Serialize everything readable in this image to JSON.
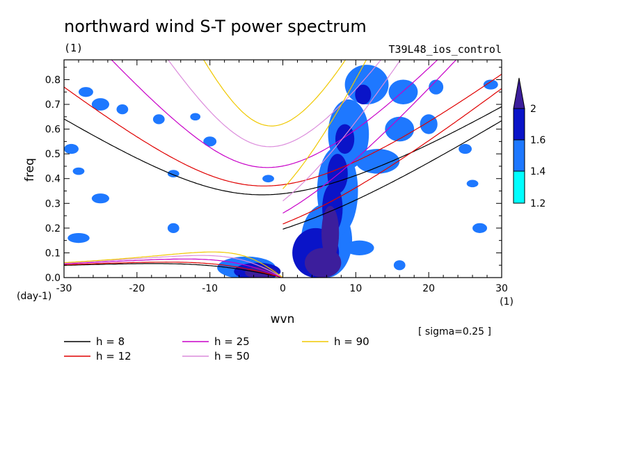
{
  "chart_data": {
    "type": "contour",
    "title": "northward wind S-T power spectrum",
    "unit_label": "(1)",
    "experiment": "T39L48_ios_control",
    "xlabel": "wvn",
    "ylabel": "freq",
    "x_unit": "(1)",
    "y_unit": "(day-1)",
    "xlim": [
      -30,
      30
    ],
    "ylim": [
      0,
      0.88
    ],
    "x_ticks": [
      -30,
      -20,
      -10,
      0,
      10,
      20,
      30
    ],
    "x_tick_labels": [
      "-30",
      "-20",
      "-10",
      "0",
      "10",
      "20",
      "30"
    ],
    "y_ticks": [
      0,
      0.1,
      0.2,
      0.3,
      0.4,
      0.5,
      0.6,
      0.7,
      0.8
    ],
    "y_tick_labels": [
      "0.0",
      "0.1",
      "0.2",
      "0.3",
      "0.4",
      "0.5",
      "0.6",
      "0.7",
      "0.8"
    ],
    "sigma_note": "[ sigma=0.25 ]",
    "colorbar": {
      "levels": [
        1.2,
        1.4,
        1.6,
        2
      ],
      "labels": [
        "1.2",
        "1.4",
        "1.6",
        "2"
      ],
      "colors": [
        "#00ffff",
        "#1e78ff",
        "#0a14c8",
        "#3c1e9c"
      ]
    },
    "dispersion_curves": [
      {
        "label": "h =  8",
        "h": 8,
        "color": "#000000"
      },
      {
        "label": "h = 12",
        "h": 12,
        "color": "#e00000"
      },
      {
        "label": "h = 25",
        "h": 25,
        "color": "#c800c8"
      },
      {
        "label": "h = 50",
        "h": 50,
        "color": "#dc8cdc"
      },
      {
        "label": "h = 90",
        "h": 90,
        "color": "#f0c800"
      }
    ],
    "power_regions": [
      {
        "x": 5.5,
        "y": 0.06,
        "rx": 2.5,
        "ry": 0.06,
        "level": 3
      },
      {
        "x": 6.5,
        "y": 0.18,
        "rx": 1.2,
        "ry": 0.11,
        "level": 3
      },
      {
        "x": 4.5,
        "y": 0.1,
        "rx": 3.2,
        "ry": 0.1,
        "level": 2
      },
      {
        "x": 6.8,
        "y": 0.28,
        "rx": 1.4,
        "ry": 0.1,
        "level": 2
      },
      {
        "x": 7.5,
        "y": 0.42,
        "rx": 1.4,
        "ry": 0.08,
        "level": 2
      },
      {
        "x": 8.5,
        "y": 0.56,
        "rx": 1.3,
        "ry": 0.06,
        "level": 2
      },
      {
        "x": 11.0,
        "y": 0.74,
        "rx": 1.1,
        "ry": 0.04,
        "level": 2
      },
      {
        "x": -3.0,
        "y": 0.02,
        "rx": 2.2,
        "ry": 0.025,
        "level": 3
      },
      {
        "x": -3.5,
        "y": 0.025,
        "rx": 3.2,
        "ry": 0.035,
        "level": 2
      },
      {
        "x": 6.0,
        "y": 0.15,
        "rx": 3.5,
        "ry": 0.15,
        "level": 1
      },
      {
        "x": 7.5,
        "y": 0.35,
        "rx": 2.8,
        "ry": 0.18,
        "level": 1
      },
      {
        "x": 9.0,
        "y": 0.58,
        "rx": 2.8,
        "ry": 0.14,
        "level": 1
      },
      {
        "x": 11.5,
        "y": 0.78,
        "rx": 3.0,
        "ry": 0.08,
        "level": 1
      },
      {
        "x": 13.0,
        "y": 0.47,
        "rx": 3.0,
        "ry": 0.05,
        "level": 1
      },
      {
        "x": 16.0,
        "y": 0.6,
        "rx": 2.0,
        "ry": 0.05,
        "level": 1
      },
      {
        "x": 16.5,
        "y": 0.75,
        "rx": 2.0,
        "ry": 0.05,
        "level": 1
      },
      {
        "x": 20.0,
        "y": 0.62,
        "rx": 1.2,
        "ry": 0.04,
        "level": 1
      },
      {
        "x": 21.0,
        "y": 0.77,
        "rx": 1.0,
        "ry": 0.03,
        "level": 1
      },
      {
        "x": 10.5,
        "y": 0.12,
        "rx": 2.0,
        "ry": 0.03,
        "level": 1
      },
      {
        "x": -5.0,
        "y": 0.04,
        "rx": 4.0,
        "ry": 0.045,
        "level": 1
      },
      {
        "x": -25.0,
        "y": 0.7,
        "rx": 1.2,
        "ry": 0.025,
        "level": 1
      },
      {
        "x": -22.0,
        "y": 0.68,
        "rx": 0.8,
        "ry": 0.02,
        "level": 1
      },
      {
        "x": -17.0,
        "y": 0.64,
        "rx": 0.8,
        "ry": 0.02,
        "level": 1
      },
      {
        "x": -29.0,
        "y": 0.52,
        "rx": 1.0,
        "ry": 0.02,
        "level": 1
      },
      {
        "x": -27.0,
        "y": 0.75,
        "rx": 1.0,
        "ry": 0.02,
        "level": 1
      },
      {
        "x": -28.0,
        "y": 0.16,
        "rx": 1.5,
        "ry": 0.02,
        "level": 1
      },
      {
        "x": -25.0,
        "y": 0.32,
        "rx": 1.2,
        "ry": 0.02,
        "level": 1
      },
      {
        "x": -15.0,
        "y": 0.2,
        "rx": 0.8,
        "ry": 0.02,
        "level": 1
      },
      {
        "x": -28.0,
        "y": 0.43,
        "rx": 0.8,
        "ry": 0.015,
        "level": 1
      },
      {
        "x": -15.0,
        "y": 0.42,
        "rx": 0.8,
        "ry": 0.015,
        "level": 1
      },
      {
        "x": -10.0,
        "y": 0.55,
        "rx": 0.9,
        "ry": 0.02,
        "level": 1
      },
      {
        "x": -2.0,
        "y": 0.4,
        "rx": 0.8,
        "ry": 0.015,
        "level": 1
      },
      {
        "x": -12.0,
        "y": 0.65,
        "rx": 0.7,
        "ry": 0.015,
        "level": 1
      },
      {
        "x": 27.0,
        "y": 0.2,
        "rx": 1.0,
        "ry": 0.02,
        "level": 1
      },
      {
        "x": 25.0,
        "y": 0.52,
        "rx": 0.9,
        "ry": 0.02,
        "level": 1
      },
      {
        "x": 28.5,
        "y": 0.78,
        "rx": 1.0,
        "ry": 0.02,
        "level": 1
      },
      {
        "x": 16.0,
        "y": 0.05,
        "rx": 0.8,
        "ry": 0.02,
        "level": 1
      },
      {
        "x": 26.0,
        "y": 0.38,
        "rx": 0.8,
        "ry": 0.015,
        "level": 1
      }
    ]
  }
}
